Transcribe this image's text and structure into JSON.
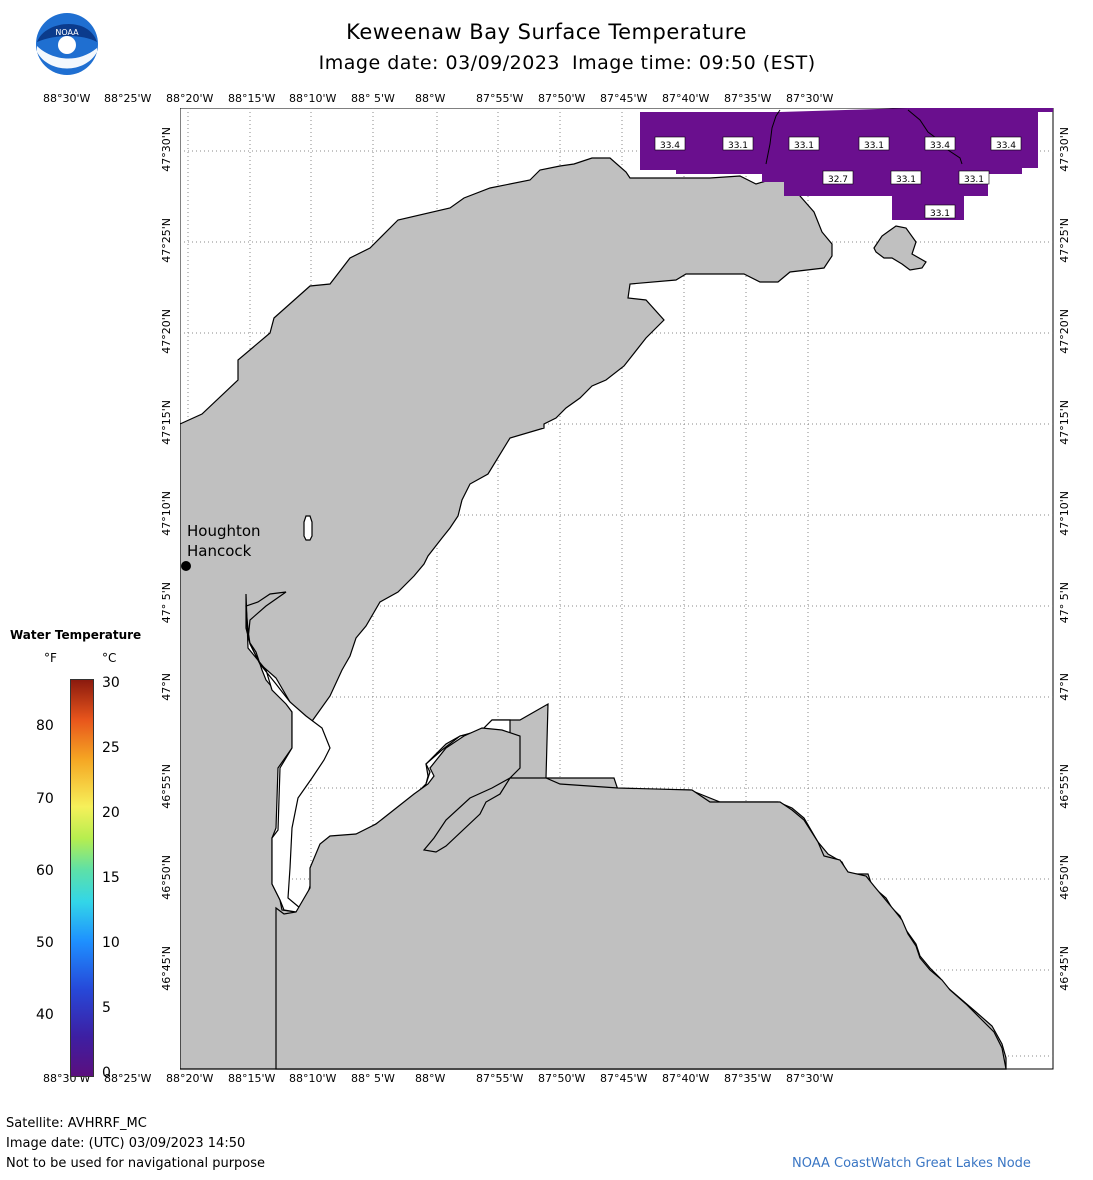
{
  "header": {
    "title": "Keweenaw Bay Surface Temperature",
    "image_date": "Image date: 03/09/2023",
    "image_time": "Image time: 09:50 (EST)"
  },
  "logo": {
    "text": "NOAA"
  },
  "axes": {
    "lon_labels": [
      "88°30'W",
      "88°25'W",
      "88°20'W",
      "88°15'W",
      "88°10'W",
      "88° 5'W",
      "88°W",
      "87°55'W",
      "87°50'W",
      "87°45'W",
      "87°40'W",
      "87°35'W",
      "87°30'W"
    ],
    "lat_labels": [
      "47°30'N",
      "47°25'N",
      "47°20'N",
      "47°15'N",
      "47°10'N",
      "47° 5'N",
      "47°N",
      "46°55'N",
      "46°50'N",
      "46°45'N"
    ]
  },
  "places": {
    "houghton": "Houghton",
    "hancock": "Hancock"
  },
  "temperature_labels": [
    "33.4",
    "33.1",
    "33.1",
    "33.1",
    "33.4",
    "33.4",
    "32.7",
    "33.1",
    "33.1",
    "33.1"
  ],
  "legend": {
    "title": "Water Temperature",
    "unit_f": "°F",
    "unit_c": "°C",
    "f_ticks": [
      "80",
      "70",
      "60",
      "50",
      "40"
    ],
    "c_ticks": [
      "30",
      "25",
      "20",
      "15",
      "10",
      "5",
      "0"
    ]
  },
  "footer": {
    "satellite": "Satellite: AVHRRF_MC",
    "utc_date": "Image date: (UTC) 03/09/2023   14:50",
    "disclaimer": "Not to be used for navigational purpose",
    "credit": "NOAA CoastWatch Great Lakes Node"
  },
  "colors": {
    "land": "#c0c0c0",
    "water_temp_fill": "#6a0f8e",
    "grid": "#888888",
    "credit": "#3a76c4"
  }
}
